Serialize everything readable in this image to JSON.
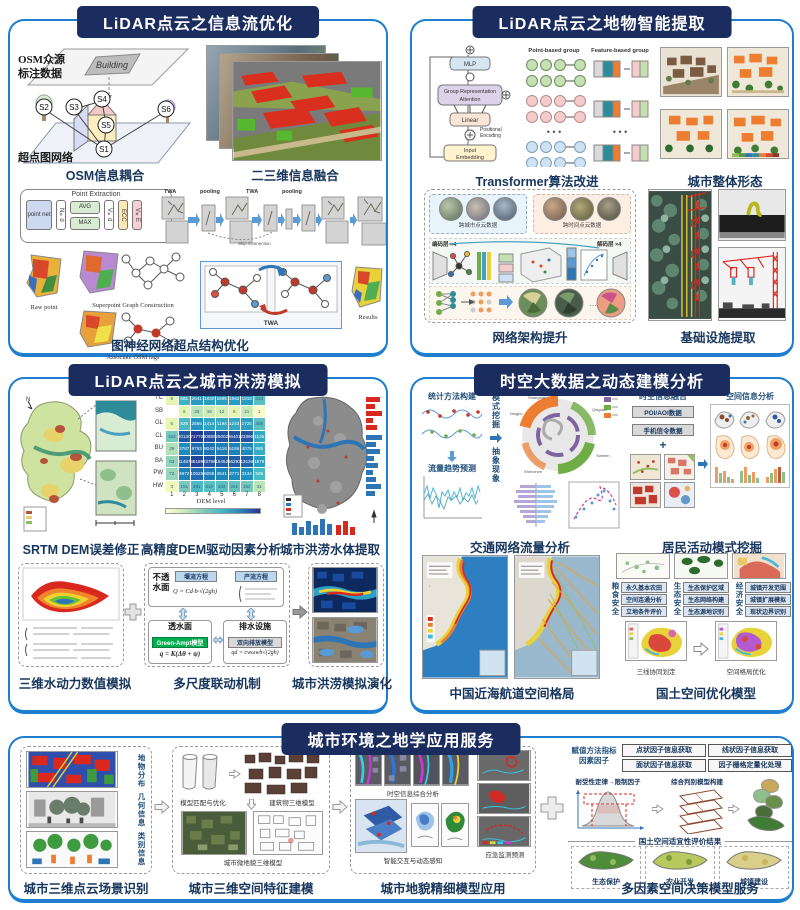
{
  "panels": {
    "p1": {
      "title": "LiDAR点云之信息流优化",
      "osm": {
        "caption": "OSM信息耦合",
        "label_line1": "OSM众源",
        "label_line2": "标注数据",
        "plane_label": "超点图网络",
        "building": "Building",
        "nodes": [
          "S1",
          "S2",
          "S3",
          "S4",
          "S5",
          "S6"
        ]
      },
      "fusion": {
        "caption": "二三维信息融合",
        "labels": [
          "TWA",
          "pooling",
          "TWA",
          "pooling"
        ],
        "skip": "Skip Connection"
      },
      "gnn": {
        "caption": "图神经网络超点结构优化",
        "pe_title": "Point Extraction",
        "blocks": {
          "pointnet": "point net",
          "nxd": "N×d",
          "avg": "AVG",
          "max": "MAX",
          "vxd": "V×d",
          "ecc": "ECC",
          "vxe": "V×E"
        },
        "raw": "Raw point",
        "spg": "Superpoint Graph Construction",
        "tags": "Associate OSM tags",
        "twa": "TWA",
        "results": "Results"
      }
    },
    "p2": {
      "title": "LiDAR点云之地物智能提取",
      "transformer": {
        "caption": "Transformer算法改进",
        "mlp": "MLP",
        "gra1": "Group Representation",
        "gra2": "Attention",
        "linear": "Linear",
        "pe1": "Positional",
        "pe2": "Encoding",
        "ie1": "Input",
        "ie2": "Embedding",
        "pg": "Point-based group",
        "fg": "Feature-based group"
      },
      "urban": {
        "caption": "城市整体形态"
      },
      "network": {
        "caption": "网络架构提升",
        "cross_city": "跨城市点云数据",
        "cross_time": "跨时间点云数据",
        "enc": "编码层 ×4",
        "dec": "解码层 ×4"
      },
      "infra": {
        "caption": "基础设施提取"
      }
    },
    "p3": {
      "title": "LiDAR点云之城市洪涝模拟",
      "captions": {
        "srtm": "SRTM DEM误差修正",
        "dem": "高精度DEM驱动因素分析",
        "water": "城市洪涝水体提取",
        "hydro": "三维水动力数值模拟",
        "multiscale": "多尺度联动机制",
        "evolve": "城市洪涝模拟演化"
      },
      "mech": {
        "impervious1": "不透",
        "impervious2": "水面",
        "weir": "堰流方程",
        "runoff": "产流方程",
        "eq_weir": "Q = Cd·b·√(2gh)",
        "pervious": "透水面",
        "green": "Green-Ampt模型",
        "eq_green": "q = K(Δθ + ψ)",
        "drain": "排水设施",
        "bi": "双向排放模型",
        "eq_drain": "qd = cwωwh√(2gh)"
      }
    },
    "p4": {
      "title": "时空大数据之动态建模分析",
      "traffic": {
        "caption": "交通网络流量分析",
        "stat": "统计方法构建",
        "trend": "流量趋势预测",
        "pattern": "模式挖掘",
        "abstract": "抽象现象"
      },
      "resident": {
        "caption": "居民活动模式挖掘",
        "fusion": "时空信息融合",
        "poi": "POI/AOI数据",
        "mobile": "手机信令数据",
        "plus": "+",
        "spatial": "空间信息分析"
      },
      "sea": {
        "caption": "中国近海航道空间格局"
      },
      "land": {
        "caption": "国土空间优化模型",
        "cols": [
          {
            "side": "粮食安全",
            "items": [
              "永久基本农田",
              "空间连通分析",
              "立地条件评价"
            ]
          },
          {
            "side": "生态安全",
            "items": [
              "生态保护区域",
              "生态网络构建",
              "生态源地识别"
            ]
          },
          {
            "side": "经济安全",
            "items": [
              "城镇开发范围",
              "城镇扩展模拟",
              "现状边界识别"
            ]
          }
        ],
        "left_map": "三线协同划定",
        "right_map": "空间格局优化"
      }
    },
    "p5": {
      "title": "城市环境之地学应用服务",
      "g1": {
        "caption": "城市三维点云场景识别",
        "labels": [
          "地物分布",
          "几何信息",
          "类别信息"
        ]
      },
      "g2": {
        "caption": "城市三维空间特征建模",
        "match": "模型匹配与优化",
        "building": "建筑物三维模型",
        "micro": "城市微地貌三维模型"
      },
      "g3": {
        "caption": "城市地貌精细模型应用",
        "spatiotemporal": "时空信息综合分析",
        "interact": "智能交互与动态感知",
        "emergency": "应急监测预测"
      },
      "g4": {
        "caption": "多因素空间决策模型服务",
        "header1": "赋值方法指标",
        "header2": "因素因子",
        "boxes": [
          "点状因子信息获取",
          "线状因子信息获取",
          "面状因子信息获取",
          "因子栅格定量化处理"
        ],
        "law": "耐受性定律→限制因子",
        "model": "综合判别模型构建",
        "result": "国土空间适宜性评价结果",
        "maps": [
          "生态保护",
          "农业开发",
          "城镇建设"
        ]
      }
    }
  },
  "chart_data": {
    "type": "heatmap",
    "title": "高精度DEM驱动因素分析",
    "xlabel": "DEM level",
    "x_ticks": [
      "1",
      "2",
      "3",
      "4",
      "5",
      "6",
      "7",
      "8"
    ],
    "rows": [
      "TC",
      "SB",
      "GL",
      "CL",
      "BU",
      "BA",
      "PW",
      "HW"
    ],
    "values": [
      [
        6,
        681,
        2041,
        1830,
        1695,
        1962,
        1918,
        334
      ],
      [
        null,
        6,
        33,
        18,
        12,
        6,
        21,
        1
      ],
      [
        5,
        528,
        2655,
        1414,
        1194,
        1243,
        1725,
        306
      ],
      [
        163,
        20130,
        71770,
        30889,
        25002,
        26401,
        23390,
        1126
      ],
      [
        39,
        3787,
        9793,
        8042,
        5416,
        5166,
        4075,
        995
      ],
      [
        83,
        11487,
        45189,
        23796,
        15452,
        16293,
        13136,
        1878
      ],
      [
        72,
        4972,
        10525,
        6056,
        4641,
        3771,
        3134,
        505
      ],
      [
        3,
        151,
        491,
        310,
        332,
        251,
        162,
        31
      ]
    ],
    "colormap": "YlGnBu",
    "legend_position": "bottom"
  }
}
